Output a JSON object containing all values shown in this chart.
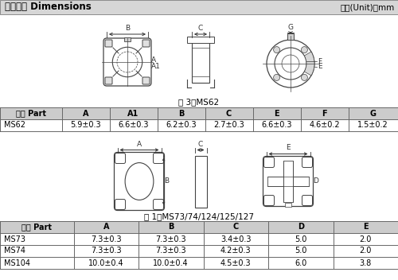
{
  "title": "外形尺寸 Dimensions",
  "unit_text": "单位(Unit)：mm",
  "fig3_label": "图 3：MS62",
  "fig1_label": "图 1：MS73/74/124/125/127",
  "header_bg": "#cccccc",
  "border_color": "#666666",
  "line_color": "#444444",
  "dim_color": "#333333",
  "title_bg": "#d6d6d6",
  "table1_headers": [
    "型号 Part",
    "A",
    "A1",
    "B",
    "C",
    "E",
    "F",
    "G"
  ],
  "table1_data": [
    [
      "MS62",
      "5.9±0.3",
      "6.6±0.3",
      "6.2±0.3",
      "2.7±0.3",
      "6.6±0.3",
      "4.6±0.2",
      "1.5±0.2"
    ]
  ],
  "table2_headers": [
    "型号 Part",
    "A",
    "B",
    "C",
    "D",
    "E"
  ],
  "table2_data": [
    [
      "MS73",
      "7.3±0.3",
      "7.3±0.3",
      "3.4±0.3",
      "5.0",
      "2.0"
    ],
    [
      "MS74",
      "7.3±0.3",
      "7.3±0.3",
      "4.2±0.3",
      "5.0",
      "2.0"
    ],
    [
      "MS104",
      "10.0±0.4",
      "10.0±0.4",
      "4.5±0.3",
      "6.0",
      "3.8"
    ]
  ]
}
